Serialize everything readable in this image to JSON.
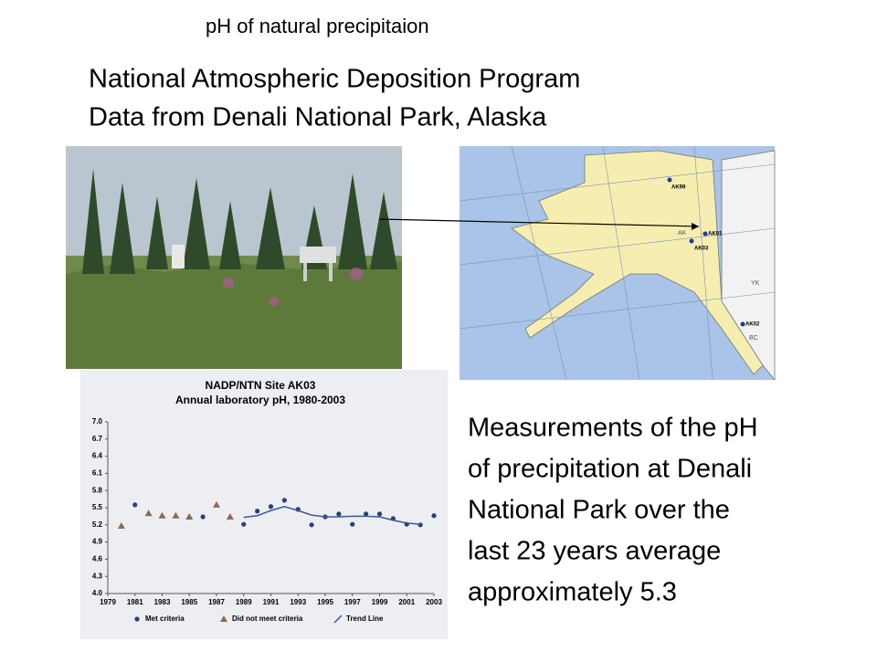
{
  "slide": {
    "title": "pH of natural precipitaion",
    "heading": [
      "National Atmospheric Deposition Program",
      "Data from Denali National Park, Alaska"
    ],
    "body": [
      "Measurements of the pH",
      "of precipitation at Denali",
      "National Park over the",
      "last 23 years average",
      "approximately 5.3"
    ]
  },
  "map": {
    "sites": [
      "AK99",
      "AK01",
      "AK03",
      "AK02"
    ],
    "regions": [
      "AK",
      "YK",
      "BC"
    ]
  },
  "chart_data": {
    "type": "scatter",
    "title": "NADP/NTN Site AK03",
    "subtitle": "Annual laboratory pH, 1980-2003",
    "x": [
      1980,
      1981,
      1982,
      1983,
      1984,
      1985,
      1986,
      1987,
      1988,
      1989,
      1990,
      1991,
      1992,
      1993,
      1994,
      1995,
      1996,
      1997,
      1998,
      1999,
      2000,
      2001,
      2002,
      2003
    ],
    "series": [
      {
        "name": "Met criteria",
        "color": "#2a3f7a",
        "marker": "circle",
        "values": [
          null,
          5.55,
          null,
          null,
          null,
          null,
          5.34,
          null,
          null,
          5.21,
          5.44,
          5.52,
          5.63,
          5.47,
          5.2,
          5.34,
          5.39,
          5.21,
          5.39,
          5.39,
          5.31,
          5.21,
          5.2,
          5.36
        ]
      },
      {
        "name": "Did not meet criteria",
        "color": "#8a6a50",
        "marker": "triangle",
        "values": [
          5.18,
          null,
          5.4,
          5.36,
          5.36,
          5.34,
          null,
          5.55,
          5.34,
          null,
          null,
          null,
          null,
          null,
          null,
          null,
          null,
          null,
          null,
          null,
          null,
          null,
          null,
          null
        ]
      },
      {
        "name": "Trend Line",
        "color": "#3a5a9a",
        "marker": "line",
        "values": [
          null,
          null,
          null,
          null,
          null,
          null,
          null,
          null,
          null,
          5.33,
          5.36,
          5.45,
          5.52,
          5.45,
          5.37,
          5.34,
          5.34,
          5.35,
          5.35,
          5.34,
          5.28,
          5.23,
          5.21,
          null
        ]
      }
    ],
    "xlim": [
      1979,
      2003
    ],
    "xticks": [
      1979,
      1981,
      1983,
      1985,
      1987,
      1989,
      1991,
      1993,
      1995,
      1997,
      1999,
      2001,
      2003
    ],
    "ylim": [
      4,
      7
    ],
    "yticks": [
      {
        "value": 7,
        "label": "7.0"
      },
      6.7,
      6.4,
      6.1,
      5.8,
      5.5,
      5.2,
      4.9,
      4.6,
      4.3,
      {
        "value": 4,
        "label": "4.0"
      }
    ],
    "grid": false
  }
}
